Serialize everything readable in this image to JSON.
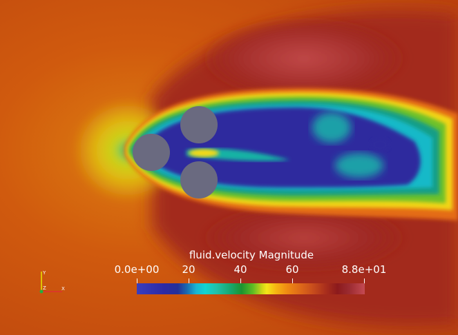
{
  "legend": {
    "title": "fluid.velocity Magnitude",
    "ticks": [
      "0.0e+00",
      "20",
      "40",
      "60",
      "8.8e+01"
    ],
    "range": [
      0,
      88
    ]
  },
  "axes_widget": {
    "y": "Y",
    "z": "Z",
    "x": "X"
  },
  "colors": {
    "free_stream": "#d0580e",
    "wake": "#2a2aa0",
    "cylinder": "#6a6a80"
  }
}
